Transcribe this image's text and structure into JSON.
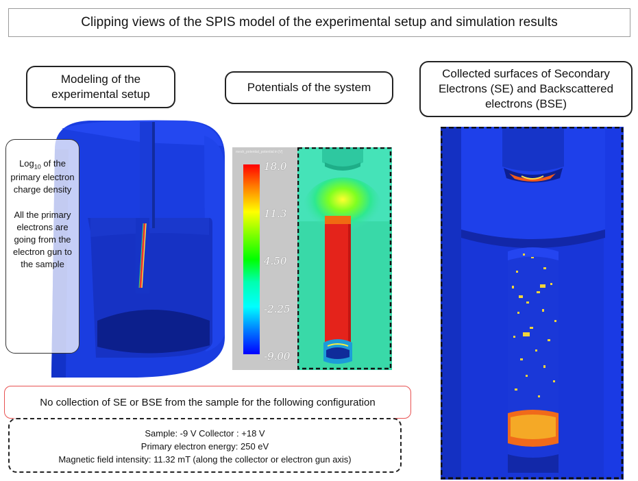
{
  "title": "Clipping views of the SPIS model of the experimental setup and simulation results",
  "callouts": {
    "modeling": "Modeling of the experimental setup",
    "potentials": "Potentials of the system",
    "collected": "Collected surfaces of Secondary Electrons (SE) and Backscattered electrons (BSE)"
  },
  "side_note": {
    "line1_prefix": "Log",
    "line1_sub": "10",
    "line1_suffix": " of the primary electron charge density",
    "line2": "All the primary electrons are going from the electron gun to the sample"
  },
  "colorbar": {
    "title": "mesh_potential_potential in [V]",
    "ticks": [
      "18.0",
      "11.3",
      "4.50",
      "-2.25",
      "-9.00"
    ]
  },
  "no_collection": "No collection of SE or BSE from the sample for the following configuration",
  "params": {
    "line1": "Sample: -9 V  Collector : +18 V",
    "line2": "Primary electron energy: 250 eV",
    "line3": "Magnetic field intensity: 11.32 mT (along the collector or electron gun axis)"
  },
  "colors": {
    "model_blue": "#1a3de0",
    "potential_teal": "#3fe0b0",
    "potential_red": "#e4231b",
    "collected_blue": "#1836d8"
  }
}
